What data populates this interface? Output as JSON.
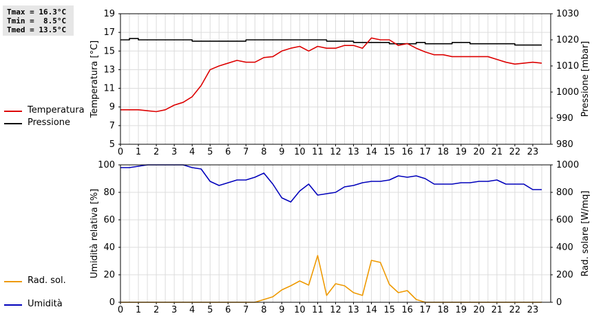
{
  "stats": {
    "tmax": "Tmax = 16.3°C",
    "tmin": "Tmin =  8.5°C",
    "tmed": "Tmed = 13.5°C"
  },
  "legend_top": [
    {
      "label": "Temperatura",
      "color": "#dd0000"
    },
    {
      "label": "Pressione",
      "color": "#000000"
    }
  ],
  "legend_bottom": [
    {
      "label": "Umidità",
      "color": "#0000bb"
    },
    {
      "label": "Rad. sol.",
      "color": "#ee9900"
    }
  ],
  "chart_data": [
    {
      "type": "line",
      "ylabel": "Temperatura [°C]",
      "y2label": "Pressione [mbar]",
      "xlim": [
        0,
        24
      ],
      "x_ticks": [
        0,
        1,
        2,
        3,
        4,
        5,
        6,
        7,
        8,
        9,
        10,
        11,
        12,
        13,
        14,
        15,
        16,
        17,
        18,
        19,
        20,
        21,
        22,
        23
      ],
      "ylim": [
        5,
        19
      ],
      "y_ticks": [
        5,
        7,
        9,
        11,
        13,
        15,
        17,
        19
      ],
      "y2lim": [
        980,
        1030
      ],
      "y2_ticks": [
        980,
        990,
        1000,
        1010,
        1020,
        1030
      ],
      "grid": true,
      "series": [
        {
          "name": "Temperatura",
          "axis": "left",
          "color": "#dd0000",
          "x": [
            0,
            0.5,
            1,
            1.5,
            2,
            2.5,
            3,
            3.5,
            4,
            4.5,
            5,
            5.5,
            6,
            6.5,
            7,
            7.5,
            8,
            8.5,
            9,
            9.5,
            10,
            10.5,
            11,
            11.5,
            12,
            12.5,
            13,
            13.5,
            14,
            14.5,
            15,
            15.5,
            16,
            16.5,
            17,
            17.5,
            18,
            18.5,
            19,
            19.5,
            20,
            20.5,
            21,
            21.5,
            22,
            22.5,
            23,
            23.5
          ],
          "values": [
            8.7,
            8.7,
            8.7,
            8.6,
            8.5,
            8.7,
            9.2,
            9.5,
            10.1,
            11.3,
            13.0,
            13.4,
            13.7,
            14.0,
            13.8,
            13.8,
            14.3,
            14.4,
            15.0,
            15.3,
            15.5,
            15.0,
            15.5,
            15.3,
            15.3,
            15.6,
            15.6,
            15.3,
            16.4,
            16.2,
            16.2,
            15.6,
            15.8,
            15.3,
            14.9,
            14.6,
            14.6,
            14.4,
            14.4,
            14.4,
            14.4,
            14.4,
            14.1,
            13.8,
            13.6,
            13.7,
            13.8,
            13.7
          ]
        },
        {
          "name": "Pressione",
          "axis": "right",
          "color": "#000000",
          "x": [
            0,
            0.5,
            1,
            1.5,
            2,
            2.5,
            3,
            3.5,
            4,
            4.5,
            5,
            5.5,
            6,
            6.5,
            7,
            7.5,
            8,
            8.5,
            9,
            9.5,
            10,
            10.5,
            11,
            11.5,
            12,
            12.5,
            13,
            13.5,
            14,
            14.5,
            15,
            15.5,
            16,
            16.5,
            17,
            17.5,
            18,
            18.5,
            19,
            19.5,
            20,
            20.5,
            21,
            21.5,
            22,
            22.5,
            23,
            23.5
          ],
          "values": [
            1020.0,
            1020.5,
            1020.0,
            1020.0,
            1020.0,
            1020.0,
            1020.0,
            1020.0,
            1019.5,
            1019.5,
            1019.5,
            1019.5,
            1019.5,
            1019.5,
            1020.0,
            1020.0,
            1020.0,
            1020.0,
            1020.0,
            1020.0,
            1020.0,
            1020.0,
            1020.0,
            1019.5,
            1019.5,
            1019.5,
            1019.0,
            1019.0,
            1019.0,
            1019.0,
            1018.5,
            1018.5,
            1018.5,
            1019.0,
            1018.5,
            1018.5,
            1018.5,
            1019.0,
            1019.0,
            1018.5,
            1018.5,
            1018.5,
            1018.5,
            1018.5,
            1018.0,
            1018.0,
            1018.0,
            1018.0
          ]
        }
      ]
    },
    {
      "type": "line",
      "ylabel": "Umidità relativa [%]",
      "y2label": "Rad. solare [W/mq]",
      "xlim": [
        0,
        24
      ],
      "x_ticks": [
        0,
        1,
        2,
        3,
        4,
        5,
        6,
        7,
        8,
        9,
        10,
        11,
        12,
        13,
        14,
        15,
        16,
        17,
        18,
        19,
        20,
        21,
        22,
        23
      ],
      "ylim": [
        0,
        100
      ],
      "y_ticks": [
        0,
        20,
        40,
        60,
        80,
        100
      ],
      "y2lim": [
        0,
        1000
      ],
      "y2_ticks": [
        0,
        200,
        400,
        600,
        800,
        1000
      ],
      "grid": true,
      "series": [
        {
          "name": "Umidità",
          "axis": "left",
          "color": "#0000bb",
          "x": [
            0,
            0.5,
            1,
            1.5,
            2,
            2.5,
            3,
            3.5,
            4,
            4.5,
            5,
            5.5,
            6,
            6.5,
            7,
            7.5,
            8,
            8.5,
            9,
            9.5,
            10,
            10.5,
            11,
            11.5,
            12,
            12.5,
            13,
            13.5,
            14,
            14.5,
            15,
            15.5,
            16,
            16.5,
            17,
            17.5,
            18,
            18.5,
            19,
            19.5,
            20,
            20.5,
            21,
            21.5,
            22,
            22.5,
            23,
            23.5
          ],
          "values": [
            98,
            98,
            99,
            100,
            100,
            100,
            100,
            100,
            98,
            97,
            88,
            85,
            87,
            89,
            89,
            91,
            94,
            86,
            76,
            73,
            81,
            86,
            78,
            79,
            80,
            84,
            85,
            87,
            88,
            88,
            89,
            92,
            91,
            92,
            90,
            86,
            86,
            86,
            87,
            87,
            88,
            88,
            89,
            86,
            86,
            86,
            82,
            82
          ]
        },
        {
          "name": "Rad. sol.",
          "axis": "right",
          "color": "#ee9900",
          "x": [
            0,
            0.5,
            1,
            1.5,
            2,
            2.5,
            3,
            3.5,
            4,
            4.5,
            5,
            5.5,
            6,
            6.5,
            7,
            7.5,
            8,
            8.5,
            9,
            9.5,
            10,
            10.5,
            11,
            11.5,
            12,
            12.5,
            13,
            13.5,
            14,
            14.5,
            15,
            15.5,
            16,
            16.5,
            17,
            17.5,
            18,
            18.5,
            19,
            19.5,
            20,
            20.5,
            21,
            21.5,
            22,
            22.5,
            23,
            23.5
          ],
          "values": [
            0,
            0,
            0,
            0,
            0,
            0,
            0,
            0,
            0,
            0,
            0,
            0,
            0,
            0,
            0,
            0,
            20,
            40,
            90,
            120,
            155,
            125,
            340,
            50,
            135,
            120,
            70,
            50,
            305,
            290,
            130,
            70,
            85,
            20,
            0,
            0,
            0,
            0,
            0,
            0,
            0,
            0,
            0,
            0,
            0,
            0,
            0,
            0
          ]
        }
      ]
    }
  ]
}
